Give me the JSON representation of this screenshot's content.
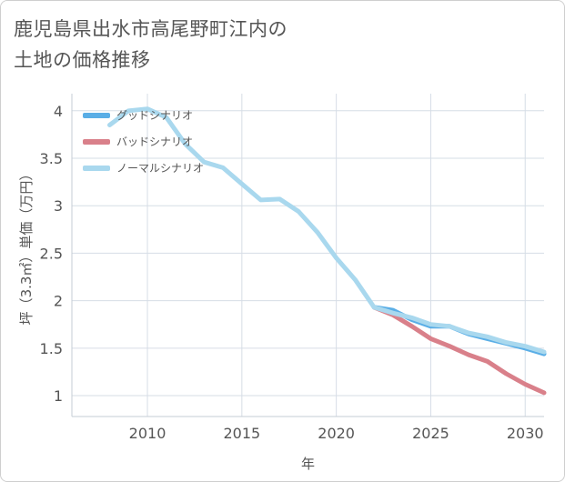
{
  "title": {
    "line1": "鹿児島県出水市高尾野町江内の",
    "line2": "土地の価格推移"
  },
  "chart_data": {
    "type": "line",
    "xlabel": "年",
    "ylabel": "坪（3.3㎡）単価（万円）",
    "xlim": [
      2006,
      2031
    ],
    "ylim": [
      0.78,
      4.18
    ],
    "xticks": [
      2010,
      2015,
      2020,
      2025,
      2030
    ],
    "yticks": [
      1,
      1.5,
      2,
      2.5,
      3,
      3.5,
      4
    ],
    "ytick_labels": [
      "1",
      "1.5",
      "2",
      "2.5",
      "3",
      "3.5",
      "4"
    ],
    "grid": true,
    "legend_position": "top-left",
    "series": [
      {
        "name": "グッドシナリオ",
        "color": "#5aaee6",
        "x": [
          2022,
          2023,
          2024,
          2025,
          2026,
          2027,
          2028,
          2029,
          2030,
          2031
        ],
        "y": [
          1.93,
          1.9,
          1.8,
          1.73,
          1.73,
          1.65,
          1.6,
          1.55,
          1.5,
          1.44
        ]
      },
      {
        "name": "バッドシナリオ",
        "color": "#d9808a",
        "x": [
          2022,
          2023,
          2024,
          2025,
          2026,
          2027,
          2028,
          2029,
          2030,
          2031
        ],
        "y": [
          1.93,
          1.85,
          1.73,
          1.6,
          1.52,
          1.43,
          1.36,
          1.23,
          1.12,
          1.03
        ]
      },
      {
        "name": "ノーマルシナリオ",
        "color": "#a9d8ee",
        "x": [
          2008,
          2009,
          2010,
          2011,
          2012,
          2013,
          2014,
          2015,
          2016,
          2017,
          2018,
          2019,
          2020,
          2021,
          2022,
          2023,
          2024,
          2025,
          2026,
          2027,
          2028,
          2029,
          2030,
          2031
        ],
        "y": [
          3.85,
          4.0,
          4.02,
          3.93,
          3.65,
          3.46,
          3.4,
          3.23,
          3.06,
          3.07,
          2.94,
          2.72,
          2.45,
          2.22,
          1.93,
          1.87,
          1.82,
          1.75,
          1.73,
          1.66,
          1.62,
          1.56,
          1.52,
          1.46
        ]
      }
    ]
  }
}
